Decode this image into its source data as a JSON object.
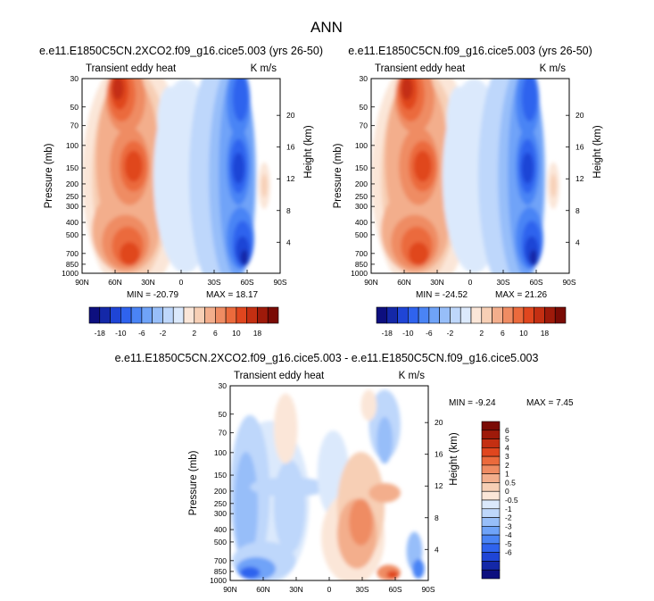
{
  "figure": {
    "title": "ANN",
    "units_label": "K m/s",
    "variable_label": "Transient eddy heat",
    "ylabel_left": "Pressure (mb)",
    "ylabel_right": "Height (km)"
  },
  "colors": {
    "blue_scale": [
      "#0d0f7f",
      "#1428a8",
      "#1f45d6",
      "#2f63ee",
      "#4a84f5",
      "#6fa3f8",
      "#97bef9",
      "#bed7fb",
      "#dbe9fc"
    ],
    "red_scale": [
      "#fbe6d8",
      "#f7cfb5",
      "#f3ae8c",
      "#ef8c63",
      "#eb6a3c",
      "#e0461e",
      "#c42f12",
      "#9e1a0a",
      "#7a0b05"
    ]
  },
  "chart_data": [
    {
      "type": "heatmap",
      "subtitle": "e.e11.E1850C5CN.2XCO2.f09_g16.cice5.003 (yrs 26-50)",
      "x_tick_labels": [
        "90N",
        "60N",
        "30N",
        "0",
        "30S",
        "60S",
        "90S"
      ],
      "y_tick_labels": [
        "30",
        "50",
        "70",
        "100",
        "150",
        "200",
        "250",
        "300",
        "400",
        "500",
        "700",
        "850",
        "1000"
      ],
      "height_tick_labels": [
        "20",
        "16",
        "12",
        "8",
        "4"
      ],
      "min_label": "MIN = -20.79",
      "max_label": "MAX = 18.17",
      "min": -20.79,
      "max": 18.17,
      "colorbar": {
        "labels": [
          "-18",
          "-10",
          "-6",
          "-2",
          "2",
          "6",
          "10",
          "18"
        ]
      }
    },
    {
      "type": "heatmap",
      "subtitle": "e.e11.E1850C5CN.f09_g16.cice5.003 (yrs 26-50)",
      "x_tick_labels": [
        "90N",
        "60N",
        "30N",
        "0",
        "30S",
        "60S",
        "90S"
      ],
      "y_tick_labels": [
        "30",
        "50",
        "70",
        "100",
        "150",
        "200",
        "250",
        "300",
        "400",
        "500",
        "700",
        "850",
        "1000"
      ],
      "height_tick_labels": [
        "20",
        "16",
        "12",
        "8",
        "4"
      ],
      "min_label": "MIN = -24.52",
      "max_label": "MAX = 21.26",
      "min": -24.52,
      "max": 21.26,
      "colorbar": {
        "labels": [
          "-18",
          "-10",
          "-6",
          "-2",
          "2",
          "6",
          "10",
          "18"
        ]
      }
    },
    {
      "type": "heatmap",
      "subtitle": "e.e11.E1850C5CN.2XCO2.f09_g16.cice5.003 - e.e11.E1850C5CN.f09_g16.cice5.003",
      "x_tick_labels": [
        "90N",
        "60N",
        "30N",
        "0",
        "30S",
        "60S",
        "90S"
      ],
      "y_tick_labels": [
        "30",
        "50",
        "70",
        "100",
        "150",
        "200",
        "250",
        "300",
        "400",
        "500",
        "700",
        "850",
        "1000"
      ],
      "height_tick_labels": [
        "20",
        "16",
        "12",
        "8",
        "4"
      ],
      "min_label": "MIN = -9.24",
      "max_label": "MAX = 7.45",
      "min": -9.24,
      "max": 7.45,
      "colorbar": {
        "labels": [
          "6",
          "5",
          "4",
          "3",
          "2",
          "1",
          "0.5",
          "0",
          "-0.5",
          "-1",
          "-2",
          "-3",
          "-4",
          "-5",
          "-6"
        ]
      }
    }
  ]
}
